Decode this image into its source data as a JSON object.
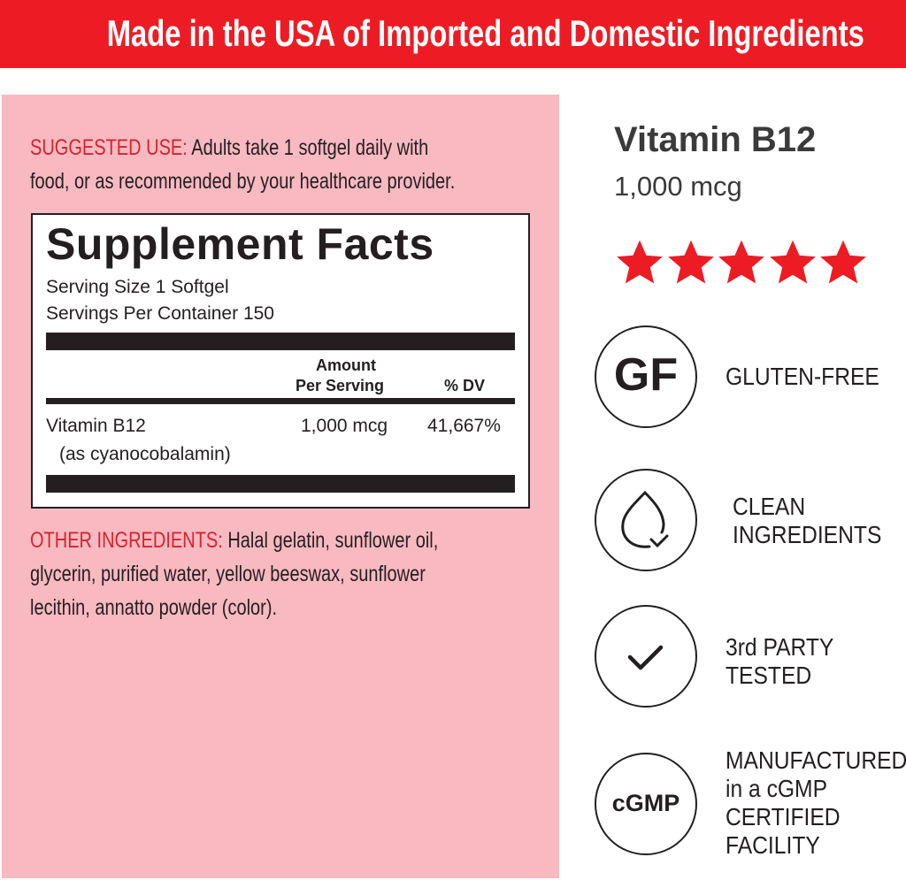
{
  "banner": {
    "text": "Made in the USA of Imported and Domestic Ingredients",
    "color": "#ed1c24"
  },
  "panel_color": "#f9b9c0",
  "suggested_use": {
    "label": "SUGGESTED USE:",
    "line1": " Adults take 1 softgel daily with",
    "line2": "food, or as recommended by your healthcare provider."
  },
  "supplement_facts": {
    "title": "Supplement Facts",
    "serving_size": "Serving Size 1 Softgel",
    "servings_per_container": "Servings Per Container 150",
    "col_amount_1": "Amount",
    "col_amount_2": "Per Serving",
    "col_dv": "% DV",
    "rows": [
      {
        "name": "Vitamin B12",
        "sub": "(as cyanocobalamin)",
        "amount": "1,000 mcg",
        "dv": "41,667%"
      }
    ]
  },
  "other_ingredients": {
    "label": "OTHER INGREDIENTS:",
    "line1": " Halal gelatin, sunflower oil,",
    "line2": "glycerin, purified water, yellow beeswax, sunflower",
    "line3": "lecithin, annatto powder (color)."
  },
  "product": {
    "title": "Vitamin B12",
    "dose": "1,000 mcg",
    "rating": 5,
    "star_color": "#ed1c24"
  },
  "badges": [
    {
      "icon": "GF",
      "icon_name": "gluten-free-icon",
      "lines": [
        "GLUTEN-FREE"
      ]
    },
    {
      "icon": "",
      "icon_name": "droplet-check-icon",
      "lines": [
        "CLEAN",
        "INGREDIENTS"
      ]
    },
    {
      "icon": "",
      "icon_name": "checkmark-icon",
      "lines": [
        "3rd PARTY",
        "TESTED"
      ]
    },
    {
      "icon": "cGMP",
      "icon_name": "cgmp-icon",
      "lines": [
        "MANUFACTURED",
        "in a cGMP",
        "CERTIFIED",
        "FACILITY"
      ]
    }
  ]
}
